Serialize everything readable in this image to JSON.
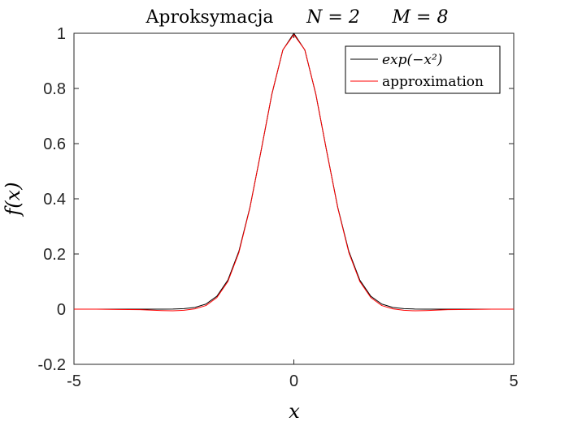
{
  "chart_data": {
    "type": "line",
    "title": {
      "main": "Aproksymacja",
      "n_part": "N = 2",
      "m_part": "M = 8"
    },
    "xlabel": "x",
    "ylabel": "f(x)",
    "xlim": [
      -5,
      5
    ],
    "ylim": [
      -0.2,
      1
    ],
    "xticks": [
      -5,
      0,
      5
    ],
    "xtick_labels": [
      "-5",
      "0",
      "5"
    ],
    "yticks": [
      -0.2,
      0,
      0.2,
      0.4,
      0.6,
      0.8,
      1
    ],
    "ytick_labels": [
      "-0.2",
      "0",
      "0.2",
      "0.4",
      "0.6",
      "0.8",
      "1"
    ],
    "grid": false,
    "legend_position": "top-right",
    "series": [
      {
        "name": "exp(-x^2)",
        "legend_label": "exp(−x²)",
        "color": "#000000",
        "x": [
          -5,
          -4.5,
          -4,
          -3.5,
          -3,
          -2.75,
          -2.5,
          -2.25,
          -2,
          -1.75,
          -1.5,
          -1.25,
          -1,
          -0.75,
          -0.5,
          -0.25,
          0,
          0.25,
          0.5,
          0.75,
          1,
          1.25,
          1.5,
          1.75,
          2,
          2.25,
          2.5,
          2.75,
          3,
          3.5,
          4,
          4.5,
          5
        ],
        "y": [
          0,
          0,
          0,
          0,
          0.0001,
          0.0005,
          0.0019,
          0.0063,
          0.0183,
          0.0468,
          0.1054,
          0.2096,
          0.3679,
          0.5698,
          0.7788,
          0.9394,
          1,
          0.9394,
          0.7788,
          0.5698,
          0.3679,
          0.2096,
          0.1054,
          0.0468,
          0.0183,
          0.0063,
          0.0019,
          0.0005,
          0.0001,
          0,
          0,
          0,
          0
        ]
      },
      {
        "name": "approximation",
        "legend_label": "approximation",
        "color": "#ff0000",
        "x": [
          -5,
          -4.5,
          -4,
          -3.5,
          -3,
          -2.75,
          -2.5,
          -2.25,
          -2,
          -1.75,
          -1.5,
          -1.25,
          -1,
          -0.75,
          -0.5,
          -0.25,
          0,
          0.25,
          0.5,
          0.75,
          1,
          1.25,
          1.5,
          1.75,
          2,
          2.25,
          2.5,
          2.75,
          3,
          3.5,
          4,
          4.5,
          5
        ],
        "y": [
          0,
          0,
          -0.001,
          -0.002,
          -0.005,
          -0.006,
          -0.004,
          0.001,
          0.013,
          0.042,
          0.1,
          0.205,
          0.366,
          0.57,
          0.78,
          0.94,
          0.995,
          0.94,
          0.78,
          0.57,
          0.366,
          0.205,
          0.1,
          0.042,
          0.013,
          0.001,
          -0.004,
          -0.006,
          -0.005,
          -0.002,
          -0.001,
          0,
          0
        ]
      }
    ]
  }
}
